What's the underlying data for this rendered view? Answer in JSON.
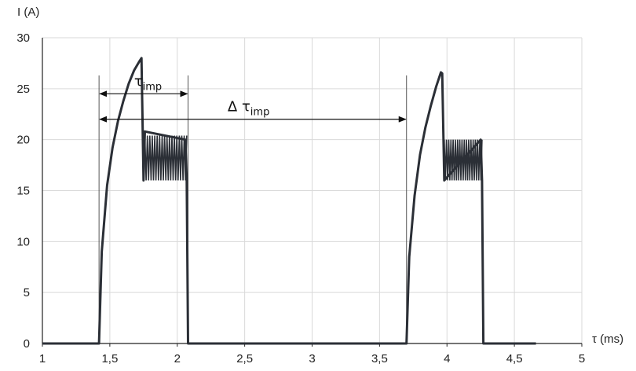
{
  "chart_data": {
    "type": "line",
    "title": "",
    "xlabel": "τ  (ms)",
    "ylabel": "I (A)",
    "xlim": [
      1,
      5
    ],
    "ylim": [
      0,
      30
    ],
    "x_ticks": [
      1,
      1.5,
      2,
      2.5,
      3,
      3.5,
      4,
      4.5,
      5
    ],
    "x_tick_labels": [
      "1",
      "1,5",
      "2",
      "2,5",
      "3",
      "3,5",
      "4",
      "4,5",
      "5"
    ],
    "y_ticks": [
      0,
      5,
      10,
      15,
      20,
      25,
      30
    ],
    "y_tick_labels": [
      "0",
      "5",
      "10",
      "15",
      "20",
      "25",
      "30"
    ],
    "grid": true,
    "legend": "none",
    "line_color": "#2b2f36",
    "series": [
      {
        "values_description": "current pulses",
        "x": [
          1.0,
          1.42,
          1.44,
          1.48,
          1.52,
          1.56,
          1.6,
          1.64,
          1.68,
          1.72,
          1.735,
          1.75,
          1.76,
          2.06,
          2.07,
          2.08,
          3.7,
          3.72,
          3.76,
          3.8,
          3.84,
          3.88,
          3.92,
          3.955,
          3.965,
          3.98,
          4.25,
          4.26,
          4.27,
          4.66
        ],
        "y": [
          0,
          0,
          9,
          15.5,
          19.2,
          21.8,
          23.8,
          25.5,
          26.8,
          27.7,
          28.0,
          16.0,
          20.8,
          20.0,
          16.0,
          0,
          0,
          8.5,
          14.5,
          18.5,
          21.2,
          23.3,
          25.2,
          26.6,
          26.5,
          16.0,
          20.0,
          16.0,
          0,
          0
        ],
        "oscillation_bands": [
          {
            "x_start": 1.76,
            "x_end": 2.07,
            "y_low": 16.0,
            "y_high": 20.4
          },
          {
            "x_start": 3.98,
            "x_end": 4.26,
            "y_low": 16.0,
            "y_high": 20.0
          }
        ]
      }
    ],
    "reference_lines_x": [
      1.42,
      2.08,
      3.7
    ],
    "annotations": [
      {
        "symbol": "τ",
        "sub": "imp",
        "x_from": 1.42,
        "x_to": 2.08,
        "y": 24.5
      },
      {
        "symbol": "Δ τ",
        "sub": "imp",
        "x_from": 1.42,
        "x_to": 3.7,
        "y": 22.0
      }
    ]
  }
}
